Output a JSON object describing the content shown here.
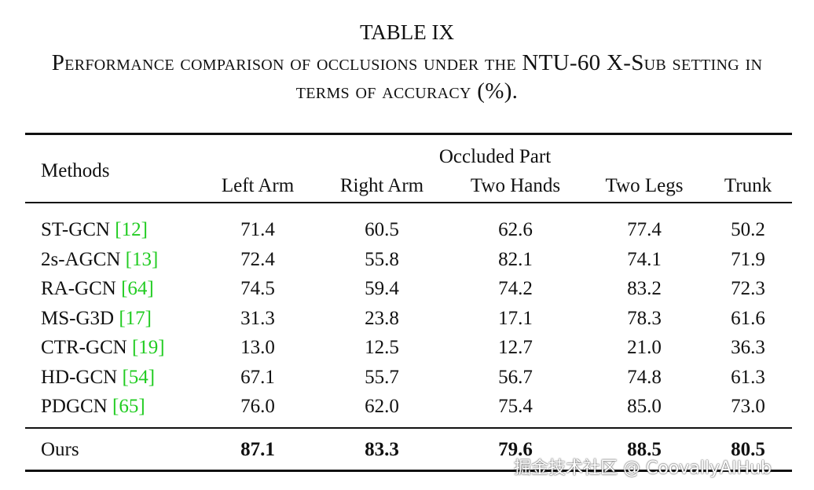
{
  "table_title": "TABLE IX",
  "caption": "Performance comparison of occlusions under the NTU-60 X-Sub setting in terms of accuracy (%).",
  "header": {
    "methods": "Methods",
    "group": "Occluded Part",
    "columns": [
      "Left Arm",
      "Right Arm",
      "Two Hands",
      "Two Legs",
      "Trunk"
    ]
  },
  "rows": [
    {
      "method": "ST-GCN",
      "citation": "[12]",
      "values": [
        "71.4",
        "60.5",
        "62.6",
        "77.4",
        "50.2"
      ]
    },
    {
      "method": "2s-AGCN",
      "citation": "[13]",
      "values": [
        "72.4",
        "55.8",
        "82.1",
        "74.1",
        "71.9"
      ]
    },
    {
      "method": "RA-GCN",
      "citation": "[64]",
      "values": [
        "74.5",
        "59.4",
        "74.2",
        "83.2",
        "72.3"
      ]
    },
    {
      "method": "MS-G3D",
      "citation": "[17]",
      "values": [
        "31.3",
        "23.8",
        "17.1",
        "78.3",
        "61.6"
      ]
    },
    {
      "method": "CTR-GCN",
      "citation": "[19]",
      "values": [
        "13.0",
        "12.5",
        "12.7",
        "21.0",
        "36.3"
      ]
    },
    {
      "method": "HD-GCN",
      "citation": "[54]",
      "values": [
        "67.1",
        "55.7",
        "56.7",
        "74.8",
        "61.3"
      ]
    },
    {
      "method": "PDGCN",
      "citation": "[65]",
      "values": [
        "76.0",
        "62.0",
        "75.4",
        "85.0",
        "73.0"
      ]
    }
  ],
  "ours": {
    "method": "Ours",
    "values": [
      "87.1",
      "83.3",
      "79.6",
      "88.5",
      "80.5"
    ]
  },
  "watermark": "掘金技术社区 @ CoovallyAIHub"
}
